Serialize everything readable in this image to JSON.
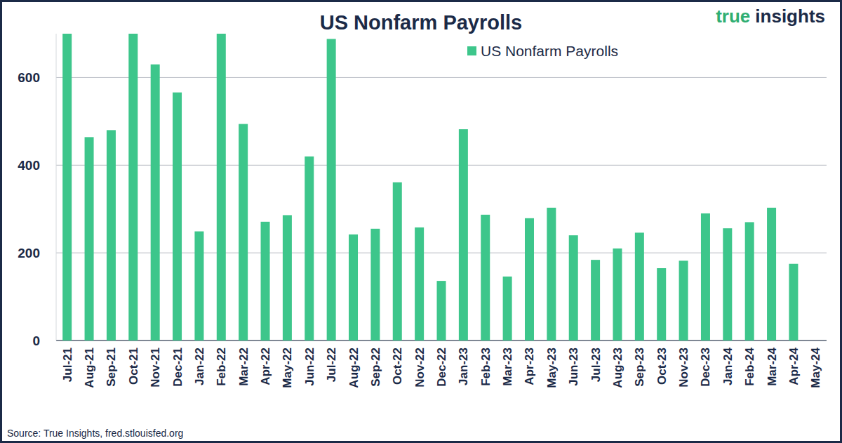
{
  "chart_data": {
    "type": "bar",
    "title": "US Nonfarm Payrolls",
    "categories": [
      "Jul-21",
      "Aug-21",
      "Sep-21",
      "Oct-21",
      "Nov-21",
      "Dec-21",
      "Jan-22",
      "Feb-22",
      "Mar-22",
      "Apr-22",
      "May-22",
      "Jun-22",
      "Jul-22",
      "Aug-22",
      "Sep-22",
      "Oct-22",
      "Nov-22",
      "Dec-22",
      "Jan-23",
      "Feb-23",
      "Mar-23",
      "Apr-23",
      "May-23",
      "Jun-23",
      "Jul-23",
      "Aug-23",
      "Sep-23",
      "Oct-23",
      "Nov-23",
      "Dec-23",
      "Jan-24",
      "Feb-24",
      "Mar-24",
      "Apr-24",
      "May-24"
    ],
    "series": [
      {
        "name": "US Nonfarm Payrolls",
        "color": "#3dc68b",
        "values": [
          700,
          464,
          480,
          700,
          630,
          566,
          249,
          700,
          494,
          271,
          286,
          420,
          688,
          242,
          255,
          361,
          258,
          136,
          482,
          287,
          146,
          279,
          303,
          240,
          184,
          210,
          246,
          165,
          182,
          290,
          256,
          270,
          303,
          175,
          null
        ]
      }
    ],
    "ylim": [
      0,
      700
    ],
    "yticks": [
      0,
      200,
      400,
      600
    ],
    "grid": true,
    "legend": "top",
    "logo": [
      "true",
      "insights"
    ],
    "source": "Source: True Insights, fred.stlouisfed.org"
  }
}
